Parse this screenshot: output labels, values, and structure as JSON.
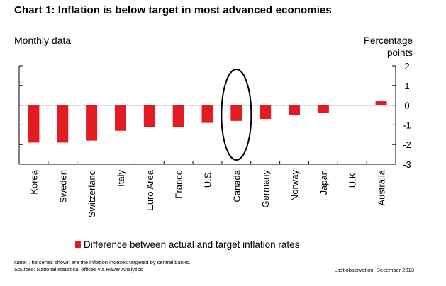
{
  "header": {
    "title": "Chart 1: Inflation is below target in most advanced economies",
    "subtitle": "Monthly data",
    "unit_line1": "Percentage",
    "unit_line2": "points"
  },
  "legend": {
    "label": "Difference between actual and target inflation rates",
    "color": "#e31b23"
  },
  "footer": {
    "note": "Note: The series shown are the inflation indexes targeted by central banks.",
    "sources": "Sources: National statistical offices via Haver Analytics",
    "last_observation": "Last observation: December 2013"
  },
  "chart_data": {
    "type": "bar",
    "title": "Chart 1: Inflation is below target in most advanced economies",
    "xlabel": "",
    "ylabel": "Percentage points",
    "ylim": [
      -3,
      2
    ],
    "yticks": [
      2,
      1,
      0,
      -1,
      -2,
      -3
    ],
    "categories": [
      "Korea",
      "Sweden",
      "Switzerland",
      "Italy",
      "Euro Area",
      "France",
      "U.S.",
      "Canada",
      "Germany",
      "Norway",
      "Japan",
      "U.K.",
      "Australia"
    ],
    "series": [
      {
        "name": "Difference between actual and target inflation rates",
        "values": [
          -1.9,
          -1.9,
          -1.8,
          -1.3,
          -1.1,
          -1.1,
          -0.9,
          -0.8,
          -0.7,
          -0.5,
          -0.4,
          0.0,
          0.2
        ],
        "color": "#e31b23"
      }
    ],
    "highlight": "Canada",
    "grid": false
  }
}
